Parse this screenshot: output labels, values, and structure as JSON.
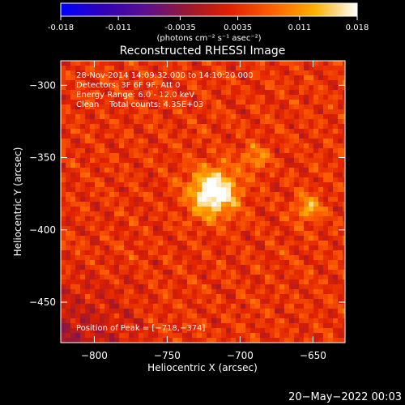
{
  "colorbar": {
    "ticks": [
      "-0.018",
      "-0.011",
      "-0.0035",
      "0.0035",
      "0.011",
      "0.018"
    ],
    "values": [
      -0.018,
      -0.011,
      -0.0035,
      0.0035,
      0.011,
      0.018
    ],
    "range": [
      -0.018,
      0.018
    ],
    "unit_label": "(photons cm⁻² s⁻¹ asec⁻²)",
    "colormap": [
      "#0000ff",
      "#3000b8",
      "#5a1090",
      "#9a1830",
      "#e02000",
      "#ff6000",
      "#ffb000",
      "#ffffff"
    ]
  },
  "chart_data": {
    "type": "heatmap",
    "title": "Reconstructed RHESSI Image",
    "xlabel": "Heliocentric X (arcsec)",
    "ylabel": "Heliocentric Y (arcsec)",
    "xlim": [
      -823,
      -628
    ],
    "ylim": [
      -478,
      -283
    ],
    "x_ticks": [
      -800,
      -750,
      -700,
      -650
    ],
    "x_tick_labels": [
      "−800",
      "−750",
      "−700",
      "−650"
    ],
    "y_ticks": [
      -300,
      -350,
      -400,
      -450
    ],
    "y_tick_labels": [
      "−300",
      "−350",
      "−400",
      "−450"
    ],
    "peak": {
      "x": -718,
      "y": -374,
      "value": 0.018
    },
    "secondary_sources": [
      {
        "x": -690,
        "y": -350,
        "value": 0.007
      },
      {
        "x": -653,
        "y": -385,
        "value": 0.009
      }
    ],
    "info_lines": [
      "28-Nov-2014 14:09:32.000 to 14:10:20.000",
      "Detectors: 3F 6F 9F, Att 0",
      "Energy Range: 6.0 - 12.0 keV",
      "Clean    Total counts: 4.35E+03"
    ],
    "peak_label": "Position of Peak = [−718,−374]"
  },
  "footer": {
    "timestamp": "20−May−2022 00:03"
  }
}
